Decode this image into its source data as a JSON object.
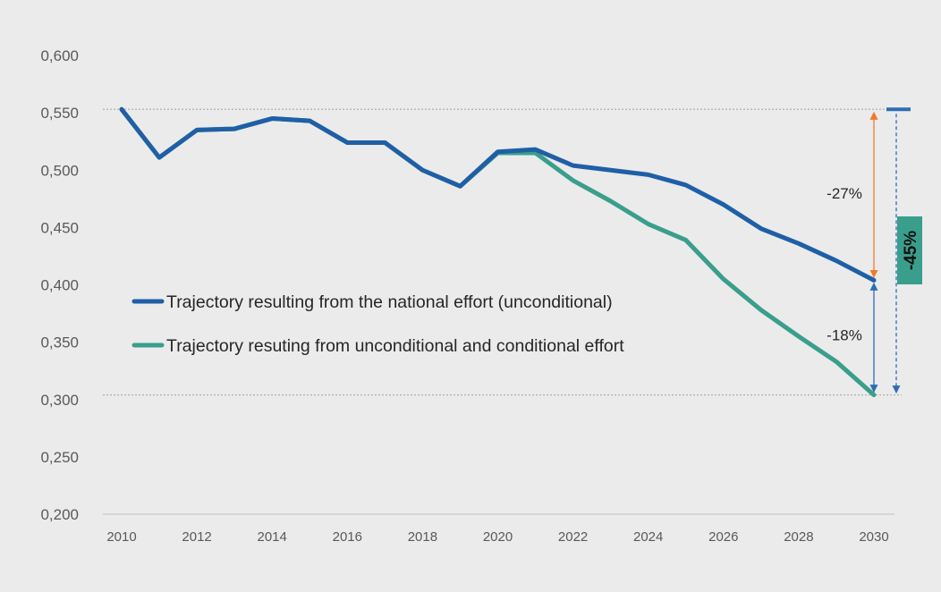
{
  "chart_data": {
    "type": "line",
    "title": "",
    "xlabel": "",
    "ylabel": "",
    "xlim": [
      2010,
      2030
    ],
    "ylim": [
      0.2,
      0.6
    ],
    "x_ticks": [
      "2010",
      "2012",
      "2014",
      "2016",
      "2018",
      "2020",
      "2022",
      "2024",
      "2026",
      "2028",
      "2030"
    ],
    "y_ticks": [
      "0,600",
      "0,550",
      "0,500",
      "0,450",
      "0,400",
      "0,350",
      "0,300",
      "0,250",
      "0,200"
    ],
    "x": [
      2010,
      2011,
      2012,
      2013,
      2014,
      2015,
      2016,
      2017,
      2018,
      2019,
      2020,
      2021,
      2022,
      2023,
      2024,
      2025,
      2026,
      2027,
      2028,
      2029,
      2030
    ],
    "series": [
      {
        "name": "Trajectory resulting from the national effort (unconditional)",
        "color": "#1f5fa6",
        "values": [
          0.553,
          0.511,
          0.535,
          0.536,
          0.545,
          0.543,
          0.524,
          0.524,
          0.5,
          0.486,
          0.516,
          0.518,
          0.504,
          0.5,
          0.496,
          0.487,
          0.47,
          0.449,
          0.436,
          0.421,
          0.404
        ]
      },
      {
        "name": "Trajectory resuting from unconditional and conditional effort",
        "color": "#3a9e8c",
        "values": [
          0.553,
          0.511,
          0.535,
          0.536,
          0.545,
          0.543,
          0.524,
          0.524,
          0.5,
          0.486,
          0.515,
          0.515,
          0.491,
          0.473,
          0.453,
          0.439,
          0.405,
          0.378,
          0.355,
          0.333,
          0.304
        ]
      }
    ],
    "grid": false,
    "legend_position": "center-left",
    "reference_lines": [
      0.553,
      0.304
    ],
    "annotations": [
      {
        "text": "-27%",
        "color": "#f07a2a",
        "from": 0.553,
        "to": 0.404
      },
      {
        "text": "-18%",
        "color": "#2e6db5",
        "from": 0.404,
        "to": 0.304
      },
      {
        "text": "-45%",
        "color": "#2e6db5",
        "from": 0.553,
        "to": 0.304,
        "badge_color": "#3a9e8c",
        "badge_text_color": "#111111"
      }
    ]
  }
}
